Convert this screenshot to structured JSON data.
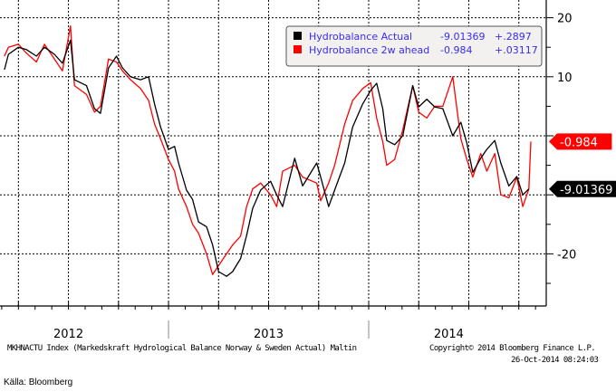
{
  "chart_data": {
    "type": "line",
    "title": "",
    "xlabel": "",
    "ylabel": "",
    "xlim": [
      2012.158,
      2014.887
    ],
    "ylim": [
      -29,
      22.5
    ],
    "grid": true,
    "y_ticks": [
      20,
      10,
      0,
      -10,
      -20
    ],
    "y_tick_labels": [
      "20",
      "10",
      "",
      "",
      "-20"
    ],
    "x_year_labels": [
      {
        "label": "2012",
        "x": 2012.5
      },
      {
        "label": "2013",
        "x": 2013.5
      },
      {
        "label": "2014",
        "x": 2014.4
      }
    ],
    "legend": {
      "placement": "top-right",
      "entries": [
        {
          "name": "Hydrobalance Actual",
          "last": "-9.01369",
          "change": "+.2897",
          "color": "#000000"
        },
        {
          "name": "Hydrobalance 2w ahead",
          "last": "-0.984",
          "change": "+.03117",
          "color": "#ff0000"
        }
      ]
    },
    "last_value_labels": [
      {
        "text": "-0.984",
        "value": -0.984,
        "color": "#ff0000"
      },
      {
        "text": "-9.01369",
        "value": -9.01369,
        "color": "#000000"
      }
    ],
    "series": [
      {
        "name": "Hydrobalance Actual",
        "color": "#000000",
        "x": [
          2012.18,
          2012.2,
          2012.25,
          2012.29,
          2012.34,
          2012.38,
          2012.43,
          2012.47,
          2012.51,
          2012.53,
          2012.59,
          2012.63,
          2012.66,
          2012.7,
          2012.74,
          2012.77,
          2012.81,
          2012.86,
          2012.9,
          2012.93,
          2012.96,
          2013.0,
          2013.03,
          2013.05,
          2013.09,
          2013.12,
          2013.15,
          2013.19,
          2013.22,
          2013.25,
          2013.29,
          2013.32,
          2013.36,
          2013.39,
          2013.42,
          2013.46,
          2013.51,
          2013.54,
          2013.57,
          2013.63,
          2013.67,
          2013.74,
          2013.76,
          2013.8,
          2013.83,
          2013.88,
          2013.92,
          2013.97,
          2014.01,
          2014.04,
          2014.07,
          2014.09,
          2014.13,
          2014.17,
          2014.22,
          2014.25,
          2014.29,
          2014.33,
          2014.37,
          2014.42,
          2014.46,
          2014.49,
          2014.52,
          2014.56,
          2014.59,
          2014.63,
          2014.66,
          2014.7,
          2014.74,
          2014.77,
          2014.8
        ],
        "y": [
          11.2,
          13.8,
          15,
          14.6,
          13.5,
          15,
          13.8,
          12.3,
          16.2,
          9.5,
          8.5,
          4.6,
          3.8,
          11.5,
          13.5,
          11.5,
          10,
          9.5,
          10,
          5.4,
          1.5,
          -2.3,
          -1.8,
          -4.6,
          -9.2,
          -10.8,
          -14.6,
          -15.4,
          -18.5,
          -23,
          -23.8,
          -23,
          -20.8,
          -16.9,
          -12.3,
          -9.2,
          -7.7,
          -10,
          -12,
          -3.8,
          -8.5,
          -4.6,
          -7,
          -12,
          -9.2,
          -4.6,
          1.5,
          5.4,
          7.7,
          8.9,
          4.6,
          -0.8,
          -1.5,
          0,
          8.5,
          4.9,
          6.2,
          4.9,
          4.6,
          0,
          2.3,
          -1.2,
          -6.2,
          -3.8,
          -2.3,
          -0.8,
          -4.6,
          -8.5,
          -6.9,
          -10,
          -9.01
        ]
      },
      {
        "name": "Hydrobalance 2w ahead",
        "color": "#ff0000",
        "x": [
          2012.18,
          2012.2,
          2012.25,
          2012.29,
          2012.34,
          2012.38,
          2012.43,
          2012.47,
          2012.51,
          2012.53,
          2012.59,
          2012.63,
          2012.66,
          2012.7,
          2012.74,
          2012.77,
          2012.81,
          2012.86,
          2012.9,
          2012.93,
          2012.96,
          2013.0,
          2013.03,
          2013.05,
          2013.09,
          2013.12,
          2013.15,
          2013.19,
          2013.22,
          2013.25,
          2013.29,
          2013.32,
          2013.36,
          2013.39,
          2013.42,
          2013.46,
          2013.51,
          2013.54,
          2013.57,
          2013.63,
          2013.67,
          2013.74,
          2013.76,
          2013.8,
          2013.83,
          2013.88,
          2013.92,
          2013.97,
          2014.01,
          2014.04,
          2014.07,
          2014.09,
          2014.13,
          2014.17,
          2014.22,
          2014.25,
          2014.29,
          2014.33,
          2014.37,
          2014.42,
          2014.46,
          2014.49,
          2014.52,
          2014.56,
          2014.59,
          2014.63,
          2014.66,
          2014.7,
          2014.74,
          2014.77,
          2014.8,
          2014.81
        ],
        "y": [
          13.5,
          15,
          15.5,
          14,
          12.5,
          15.5,
          13,
          11,
          18.6,
          8.5,
          7,
          4,
          5,
          13,
          12.5,
          11,
          9.5,
          8,
          6,
          2,
          -0.5,
          -4,
          -6,
          -9,
          -12,
          -15,
          -16.5,
          -20,
          -23.5,
          -22,
          -20,
          -18.5,
          -17,
          -12,
          -9,
          -8,
          -10,
          -12,
          -6,
          -5,
          -7,
          -8,
          -11,
          -8,
          -5,
          2,
          6,
          8,
          9,
          3,
          -1,
          -5,
          -4,
          1,
          8.5,
          4,
          3,
          5,
          5,
          10,
          -0.5,
          -4,
          -7,
          -3,
          -6,
          -3,
          -10,
          -10.5,
          -7,
          -12,
          -9,
          -0.98
        ]
      }
    ]
  },
  "footer": {
    "description": "MKHNACTU Index (Markedskraft Hydrological Balance Norway & Sweden Actual) Maltin",
    "copyright": "Copyright© 2014 Bloomberg Finance L.P.",
    "timestamp": "26-Oct-2014 08:24:03",
    "source": "Källa: Bloomberg"
  }
}
